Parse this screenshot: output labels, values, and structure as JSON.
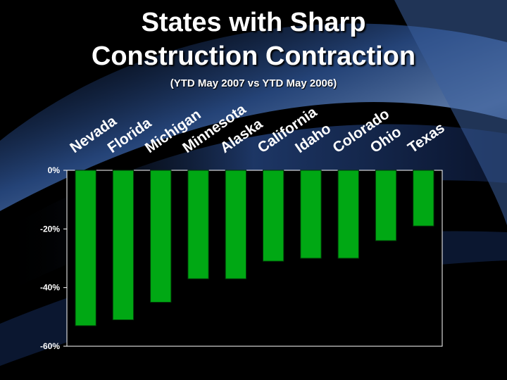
{
  "title_line1": "States with Sharp",
  "title_line2": "Construction Contraction",
  "subtitle": "(YTD May 2007 vs YTD May 2006)",
  "colors": {
    "bar": "#00a814",
    "bar_stroke": "#003b06",
    "plot_bg": "#000000",
    "axis": "#ffffff"
  },
  "chart_data": {
    "type": "bar",
    "title": "States with Sharp Construction Contraction",
    "subtitle": "(YTD May 2007 vs YTD May 2006)",
    "categories": [
      "Nevada",
      "Florida",
      "Michigan",
      "Minnesota",
      "Alaska",
      "California",
      "Idaho",
      "Colorado",
      "Ohio",
      "Texas"
    ],
    "values": [
      -53,
      -51,
      -45,
      -37,
      -37,
      -31,
      -30,
      -30,
      -24,
      -19
    ],
    "ylim": [
      -60,
      0
    ],
    "yticks": [
      0,
      -20,
      -40,
      -60
    ],
    "ytick_labels": [
      "0%",
      "-20%",
      "-40%",
      "-60%"
    ],
    "xlabel": "",
    "ylabel": "",
    "grid": false,
    "legend": "none"
  }
}
